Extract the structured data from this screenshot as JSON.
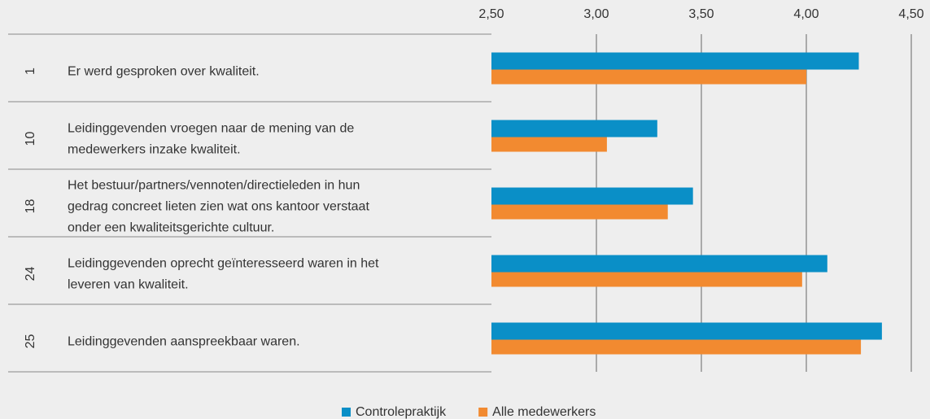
{
  "chart_data": {
    "type": "bar",
    "orientation": "horizontal",
    "categories": [
      "1",
      "10",
      "18",
      "24",
      "25"
    ],
    "labels": [
      [
        "Er werd gesproken over kwaliteit."
      ],
      [
        "Leidinggevenden vroegen naar de mening van de",
        "medewerkers inzake kwaliteit."
      ],
      [
        "Het bestuur/partners/vennoten/directieleden in hun",
        "gedrag concreet lieten zien wat ons kantoor verstaat",
        "onder een kwaliteitsgerichte cultuur."
      ],
      [
        "Leidinggevenden oprecht geïnteresseerd waren in het",
        "leveren van kwaliteit."
      ],
      [
        "Leidinggevenden aanspreekbaar waren."
      ]
    ],
    "series": [
      {
        "name": "Controlepraktijk",
        "color": "#0a8fc7",
        "values": [
          4.25,
          3.29,
          3.46,
          4.1,
          4.36
        ]
      },
      {
        "name": "Alle medewerkers",
        "color": "#f28a30",
        "values": [
          4.0,
          3.05,
          3.34,
          3.98,
          4.26
        ]
      }
    ],
    "xlim": [
      2.5,
      4.5
    ],
    "xticks": [
      {
        "value": 2.5,
        "label": "2,50"
      },
      {
        "value": 3,
        "label": "3,00"
      },
      {
        "value": 3.5,
        "label": "3,50"
      },
      {
        "value": 4,
        "label": "4,00"
      },
      {
        "value": 4.5,
        "label": "4,50"
      }
    ],
    "grid": true,
    "legend": "bottom"
  }
}
